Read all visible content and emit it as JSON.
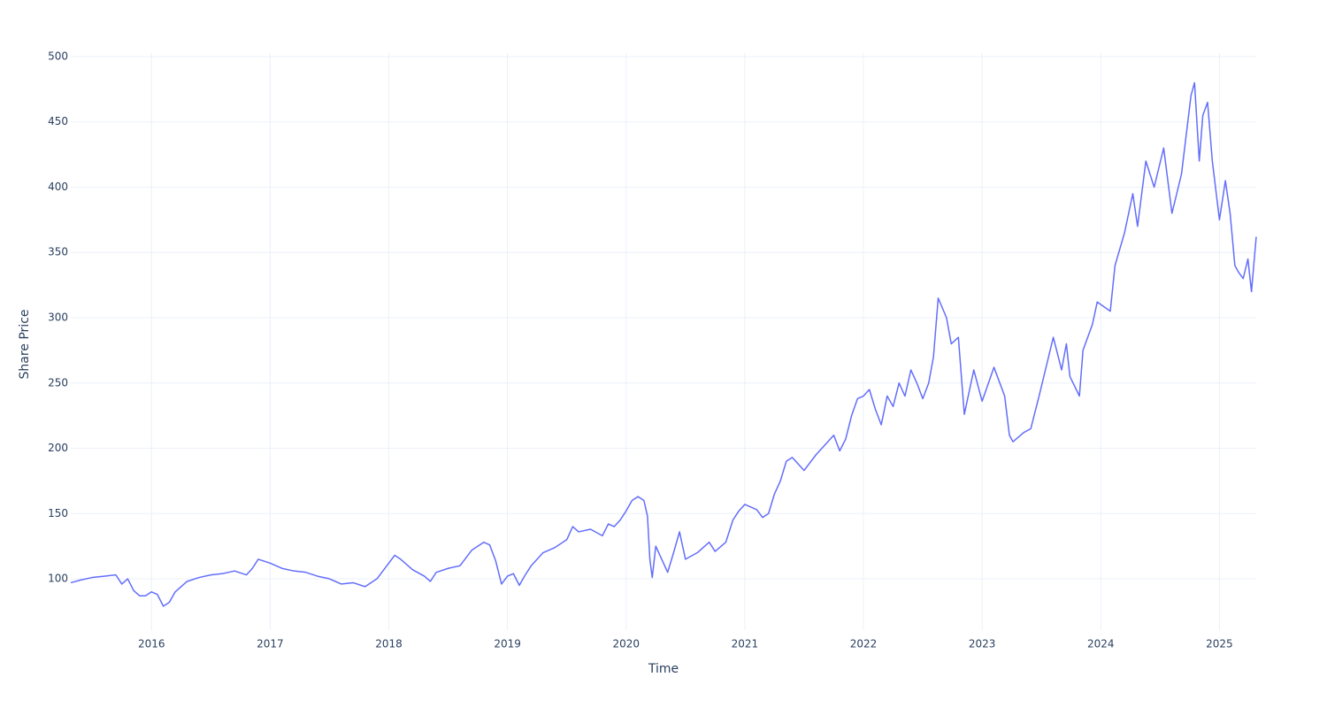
{
  "chart_data": {
    "type": "line",
    "x_label": "Time",
    "y_label": "Share Price",
    "x": [
      2015.32,
      2015.4,
      2015.5,
      2015.6,
      2015.7,
      2015.75,
      2015.8,
      2015.85,
      2015.9,
      2015.95,
      2016.0,
      2016.05,
      2016.1,
      2016.15,
      2016.2,
      2016.3,
      2016.4,
      2016.5,
      2016.6,
      2016.7,
      2016.8,
      2016.85,
      2016.9,
      2017.0,
      2017.1,
      2017.2,
      2017.3,
      2017.4,
      2017.5,
      2017.6,
      2017.7,
      2017.8,
      2017.9,
      2018.0,
      2018.05,
      2018.1,
      2018.2,
      2018.3,
      2018.35,
      2018.4,
      2018.5,
      2018.6,
      2018.7,
      2018.8,
      2018.85,
      2018.9,
      2018.95,
      2019.0,
      2019.05,
      2019.1,
      2019.15,
      2019.2,
      2019.3,
      2019.4,
      2019.5,
      2019.55,
      2019.6,
      2019.7,
      2019.8,
      2019.85,
      2019.9,
      2019.95,
      2020.0,
      2020.05,
      2020.1,
      2020.15,
      2020.18,
      2020.2,
      2020.22,
      2020.25,
      2020.3,
      2020.35,
      2020.4,
      2020.45,
      2020.5,
      2020.6,
      2020.7,
      2020.75,
      2020.84,
      2020.9,
      2020.95,
      2021.0,
      2021.1,
      2021.15,
      2021.2,
      2021.25,
      2021.3,
      2021.35,
      2021.4,
      2021.45,
      2021.5,
      2021.6,
      2021.7,
      2021.75,
      2021.8,
      2021.85,
      2021.9,
      2021.95,
      2022.0,
      2022.05,
      2022.1,
      2022.15,
      2022.2,
      2022.25,
      2022.3,
      2022.35,
      2022.4,
      2022.45,
      2022.5,
      2022.55,
      2022.59,
      2022.63,
      2022.7,
      2022.74,
      2022.8,
      2022.85,
      2022.93,
      2023.0,
      2023.1,
      2023.19,
      2023.23,
      2023.26,
      2023.35,
      2023.41,
      2023.48,
      2023.6,
      2023.67,
      2023.71,
      2023.74,
      2023.82,
      2023.85,
      2023.93,
      2023.97,
      2024.08,
      2024.12,
      2024.2,
      2024.27,
      2024.31,
      2024.38,
      2024.45,
      2024.53,
      2024.6,
      2024.68,
      2024.72,
      2024.76,
      2024.79,
      2024.83,
      2024.86,
      2024.9,
      2024.94,
      2025.0,
      2025.05,
      2025.09,
      2025.13,
      2025.16,
      2025.2,
      2025.24,
      2025.27,
      2025.31
    ],
    "series": [
      {
        "color": "#636efa",
        "values": [
          97,
          99,
          101,
          102,
          103,
          96,
          100,
          91,
          87,
          87,
          90,
          88,
          79,
          82,
          90,
          98,
          101,
          103,
          104,
          106,
          103,
          108,
          115,
          112,
          108,
          106,
          105,
          102,
          100,
          96,
          97,
          94,
          100,
          112,
          118,
          115,
          107,
          102,
          98,
          105,
          108,
          110,
          122,
          128,
          126,
          114,
          96,
          102,
          104,
          95,
          103,
          110,
          120,
          124,
          130,
          140,
          136,
          138,
          133,
          142,
          140,
          145,
          152,
          160,
          163,
          160,
          148,
          115,
          101,
          125,
          115,
          105,
          120,
          136,
          115,
          120,
          128,
          121,
          128,
          145,
          152,
          157,
          153,
          147,
          150,
          165,
          175,
          190,
          193,
          188,
          183,
          195,
          205,
          210,
          198,
          207,
          225,
          238,
          240,
          245,
          230,
          218,
          240,
          232,
          250,
          240,
          260,
          250,
          238,
          250,
          270,
          315,
          300,
          280,
          285,
          226,
          260,
          236,
          262,
          240,
          210,
          205,
          212,
          215,
          240,
          285,
          260,
          280,
          255,
          240,
          275,
          295,
          312,
          305,
          340,
          365,
          395,
          370,
          420,
          400,
          430,
          380,
          410,
          440,
          470,
          480,
          420,
          455,
          465,
          420,
          375,
          405,
          380,
          340,
          335,
          330,
          345,
          320,
          362
        ]
      }
    ],
    "xlim": [
      2015.32,
      2025.31
    ],
    "xticks": [
      2016,
      2017,
      2018,
      2019,
      2020,
      2021,
      2022,
      2023,
      2024,
      2025
    ],
    "ylim": [
      60.7,
      502.7
    ],
    "yticks": [
      100,
      150,
      200,
      250,
      300,
      350,
      400,
      450,
      500
    ],
    "grid": true
  }
}
